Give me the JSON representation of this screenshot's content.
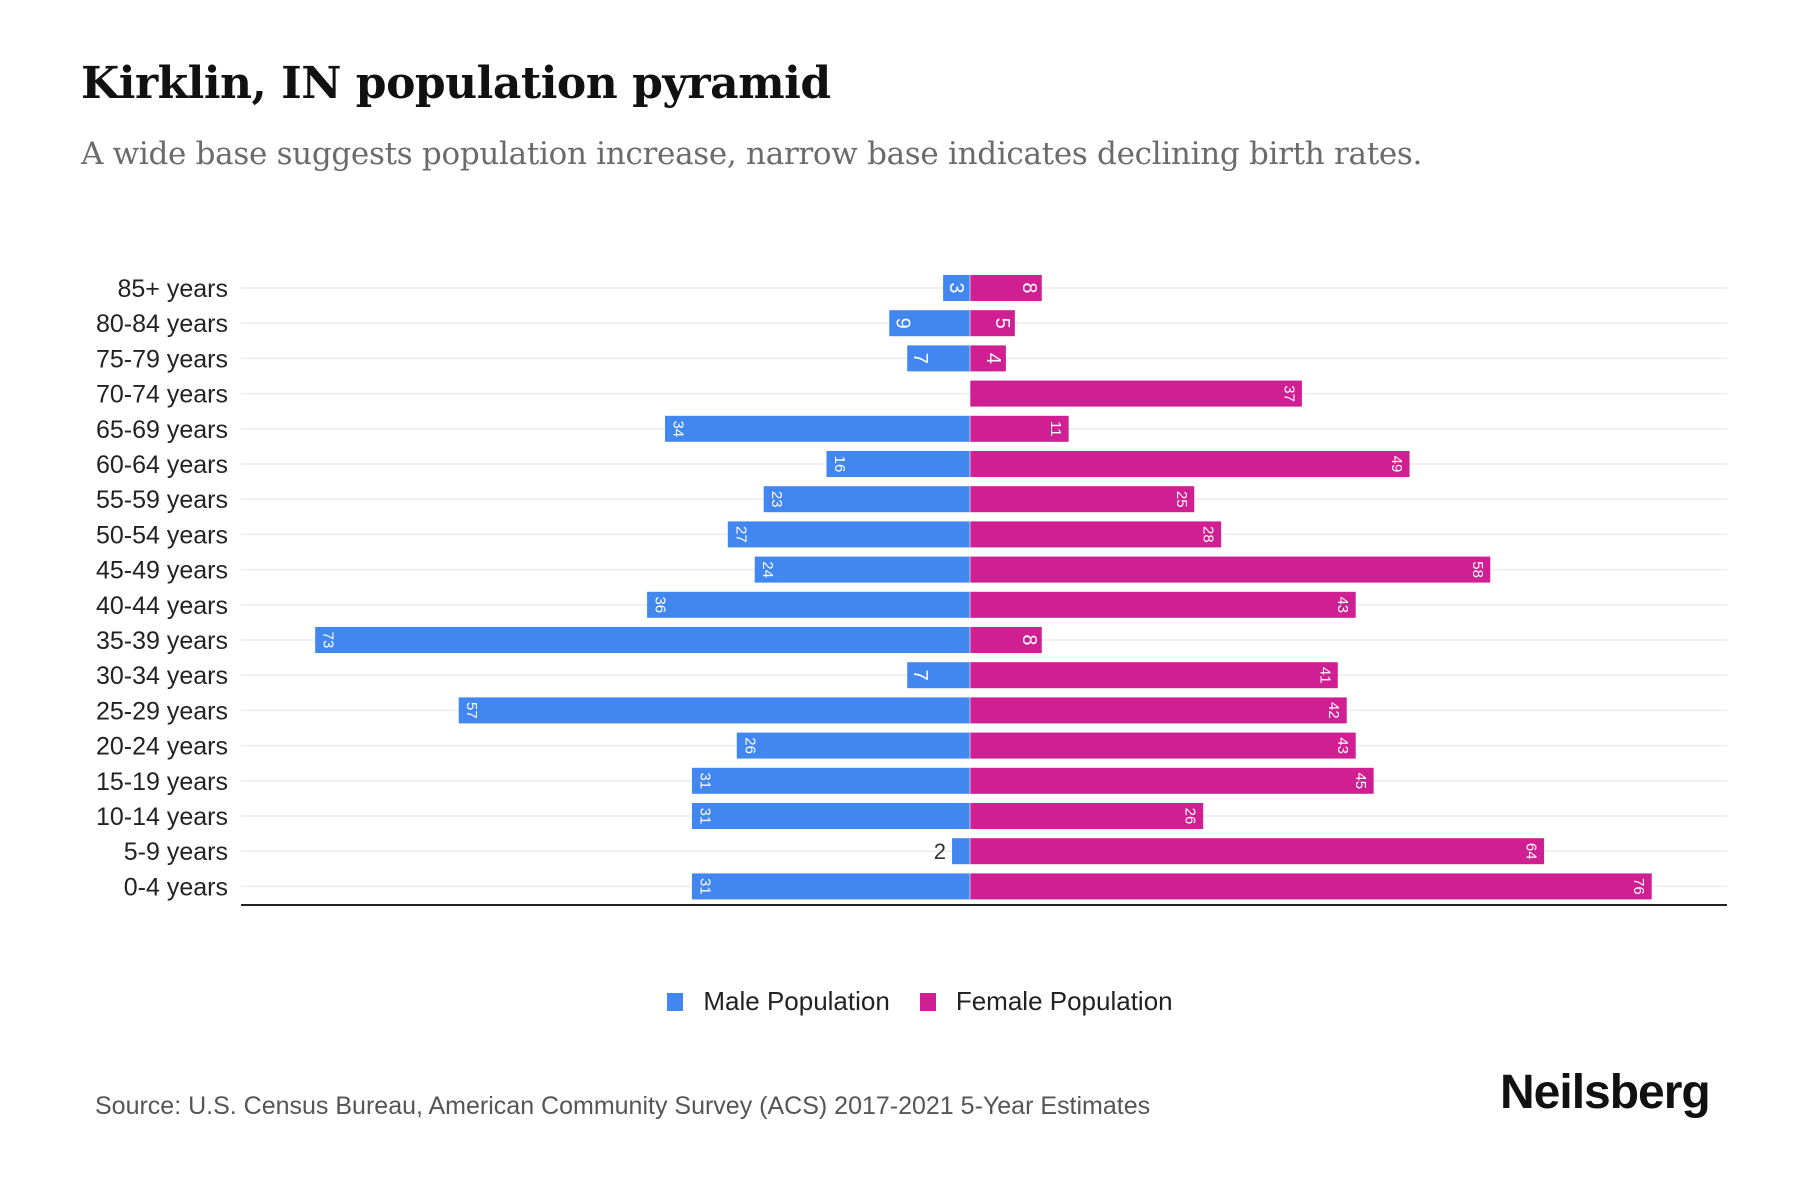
{
  "header": {
    "title": "Kirklin, IN population pyramid",
    "subtitle": "A wide base suggests population increase, narrow base indicates declining birth rates."
  },
  "chart_data": {
    "type": "bar",
    "orientation": "horizontal-pyramid",
    "categories": [
      "85+ years",
      "80-84 years",
      "75-79 years",
      "70-74 years",
      "65-69 years",
      "60-64 years",
      "55-59 years",
      "50-54 years",
      "45-49 years",
      "40-44 years",
      "35-39 years",
      "30-34 years",
      "25-29 years",
      "20-24 years",
      "15-19 years",
      "10-14 years",
      "5-9 years",
      "0-4 years"
    ],
    "series": [
      {
        "name": "Male Population",
        "color": "#4287f0",
        "values": [
          3,
          9,
          7,
          0,
          34,
          16,
          23,
          27,
          24,
          36,
          73,
          7,
          57,
          26,
          31,
          31,
          2,
          31
        ]
      },
      {
        "name": "Female Population",
        "color": "#cf1f93",
        "values": [
          8,
          5,
          4,
          37,
          11,
          49,
          25,
          28,
          58,
          43,
          8,
          41,
          42,
          43,
          45,
          26,
          64,
          76
        ]
      }
    ],
    "xlim": [
      -82,
      84
    ],
    "grid": true,
    "legend_position": "bottom-center"
  },
  "footer": {
    "source": "Source: U.S. Census Bureau, American Community Survey (ACS) 2017-2021 5-Year Estimates",
    "logo": "Neilsberg"
  }
}
